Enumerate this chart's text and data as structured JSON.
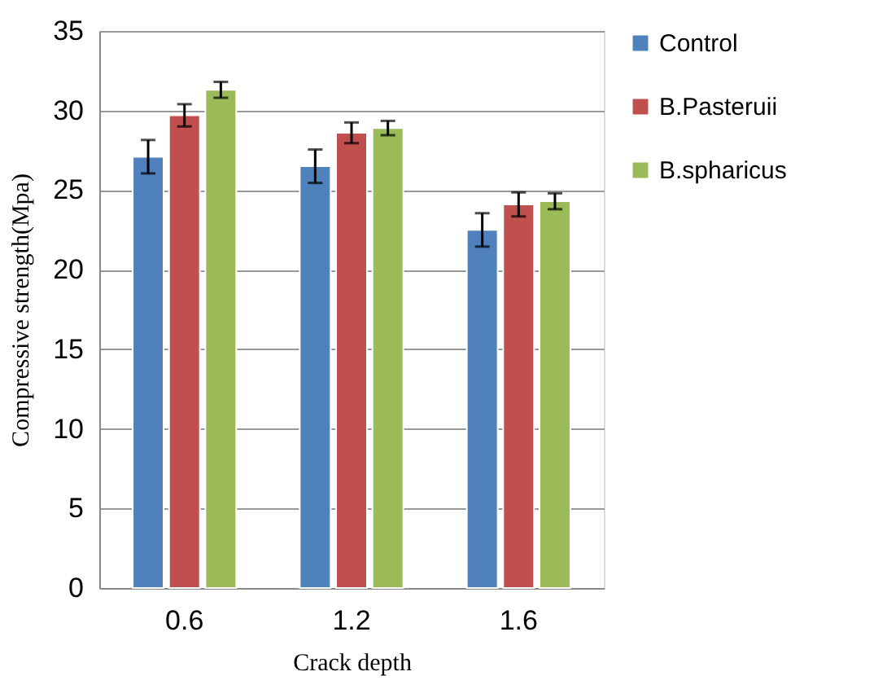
{
  "chart_data": {
    "type": "bar",
    "xlabel": "Crack depth",
    "ylabel": "Compressive strength(Mpa)",
    "categories": [
      "0.6",
      "1.2",
      "1.6"
    ],
    "series": [
      {
        "name": "Control",
        "color": "#4f81bd",
        "values": [
          27.1,
          26.5,
          22.5
        ],
        "errors": [
          1.05,
          1.05,
          1.05
        ]
      },
      {
        "name": "B.Pasteruii",
        "color": "#c0504d",
        "values": [
          29.7,
          28.6,
          24.1
        ],
        "errors": [
          0.7,
          0.65,
          0.75
        ]
      },
      {
        "name": "B.spharicus",
        "color": "#9bbb59",
        "values": [
          31.3,
          28.9,
          24.3
        ],
        "errors": [
          0.5,
          0.45,
          0.5
        ]
      }
    ],
    "ylim": [
      0,
      35
    ],
    "yticks": [
      0,
      5,
      10,
      15,
      20,
      25,
      30,
      35
    ],
    "grid": "y",
    "legend": "right"
  }
}
